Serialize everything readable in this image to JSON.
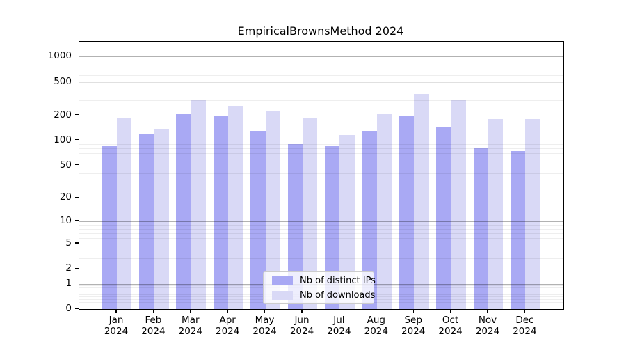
{
  "chart_data": {
    "type": "bar",
    "title": "EmpiricalBrownsMethod 2024",
    "year_label": "2024",
    "categories": [
      "Jan",
      "Feb",
      "Mar",
      "Apr",
      "May",
      "Jun",
      "Jul",
      "Aug",
      "Sep",
      "Oct",
      "Nov",
      "Dec"
    ],
    "series": [
      {
        "name": "Nb of distinct IPs",
        "color": "#a9a9f4",
        "values": [
          86,
          119,
          205,
          198,
          130,
          90,
          85,
          130,
          199,
          147,
          81,
          74
        ]
      },
      {
        "name": "Nb of downloads",
        "color": "#d9d9f6",
        "values": [
          185,
          137,
          300,
          255,
          223,
          184,
          115,
          207,
          360,
          300,
          181,
          181
        ]
      }
    ],
    "xlabel": "",
    "ylabel": "",
    "y_scale": "log1p",
    "y_axis_top_value": 1500,
    "y_ticks": [
      0,
      1,
      2,
      5,
      10,
      20,
      50,
      100,
      200,
      500,
      1000
    ],
    "grid": {
      "on": true,
      "strong_lines": [
        1,
        10,
        100,
        1000
      ],
      "mid_lines": [
        2,
        5,
        20,
        50,
        200,
        500
      ],
      "strong_color": "rgba(0,0,0,0.30)",
      "mid_color": "rgba(0,0,0,0.12)",
      "minor_color": "rgba(0,0,0,0.065)"
    },
    "legend": {
      "position": "bottom-center",
      "frame_color": "#cccccc"
    },
    "colors": {
      "background": "#ffffff",
      "spine": "#000000",
      "tick_label": "#000000"
    }
  }
}
